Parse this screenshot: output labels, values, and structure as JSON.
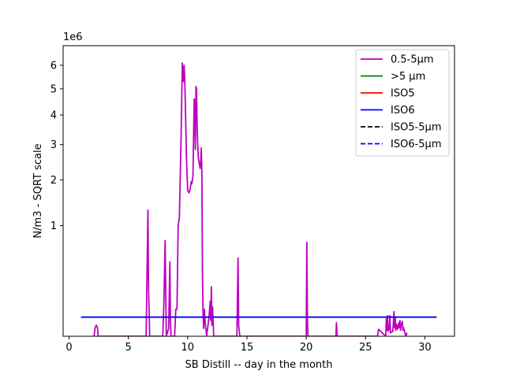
{
  "chart_data": {
    "type": "line",
    "title": "",
    "xlabel": "SB Distill -- day in the month",
    "ylabel": "N/m3 - SQRT scale",
    "y_scale": "sqrt",
    "y_offset_text": "1e6",
    "xlim": [
      -0.5,
      32.5
    ],
    "ylim": [
      0,
      6.9
    ],
    "xticks": [
      0,
      5,
      10,
      15,
      20,
      25,
      30
    ],
    "xtick_labels": [
      "0",
      "5",
      "10",
      "15",
      "20",
      "25",
      "30"
    ],
    "yticks": [
      1,
      2,
      3,
      4,
      5,
      6
    ],
    "ytick_labels": [
      "1",
      "2",
      "3",
      "4",
      "5",
      "6"
    ],
    "legend_position": "upper right",
    "series": [
      {
        "name": "0.5-5µm",
        "color": "#bf00bf",
        "style": "solid",
        "x": [
          2.1,
          2.2,
          2.3,
          2.4,
          2.45,
          6.5,
          6.6,
          6.65,
          6.7,
          6.8,
          7.9,
          8.0,
          8.1,
          8.2,
          8.4,
          8.5,
          8.55,
          8.6,
          8.9,
          9.0,
          9.1,
          9.2,
          9.3,
          9.45,
          9.55,
          9.65,
          9.7,
          9.75,
          9.8,
          9.85,
          9.9,
          10.0,
          10.1,
          10.2,
          10.3,
          10.35,
          10.45,
          10.55,
          10.6,
          10.65,
          10.7,
          10.75,
          10.8,
          10.85,
          10.9,
          10.95,
          11.0,
          11.05,
          11.1,
          11.15,
          11.2,
          11.25,
          11.3,
          11.35,
          11.4,
          11.5,
          11.6,
          11.8,
          11.9,
          11.95,
          12.0,
          12.05,
          12.1,
          12.2,
          14.15,
          14.25,
          14.3,
          14.4,
          20.0,
          20.05,
          20.1,
          20.15,
          22.5,
          22.55,
          22.6,
          26.0,
          26.1,
          26.7,
          26.75,
          26.8,
          26.85,
          26.9,
          27.0,
          27.05,
          27.1,
          27.3,
          27.4,
          27.45,
          27.5,
          27.55,
          27.6,
          27.7,
          27.8,
          27.85,
          27.9,
          27.95,
          28.0,
          28.1,
          28.15,
          28.2,
          28.4,
          28.5
        ],
        "values": [
          0,
          0.006,
          0.01,
          0.006,
          0,
          0,
          0.6,
          1.3,
          0.2,
          0,
          0,
          0.1,
          0.75,
          0,
          0.005,
          0.45,
          0.02,
          0,
          0,
          0.06,
          0.06,
          1.0,
          1.15,
          3.3,
          6.1,
          5.3,
          6.0,
          5.5,
          4.5,
          3.5,
          2.6,
          1.75,
          1.68,
          1.75,
          1.95,
          1.9,
          2.1,
          4.6,
          4.0,
          2.85,
          5.1,
          5.0,
          3.6,
          3.0,
          2.6,
          2.5,
          2.4,
          2.3,
          2.5,
          2.9,
          2.2,
          0.3,
          0.04,
          0.005,
          0.06,
          0.01,
          0,
          0.03,
          0.1,
          0.02,
          0.2,
          0.01,
          0.07,
          0,
          0,
          0.5,
          0.01,
          0,
          0,
          0.72,
          0.02,
          0,
          0,
          0.015,
          0,
          0,
          0.004,
          0,
          0.025,
          0.003,
          0.035,
          0.002,
          0.005,
          0.035,
          0.001,
          0.002,
          0.05,
          0.006,
          0.03,
          0.003,
          0.012,
          0.004,
          0.015,
          0.006,
          0.02,
          0.003,
          0.01,
          0.018,
          0.003,
          0.006,
          0,
          0.001
        ]
      },
      {
        "name": ">5 µm",
        "color": "#008000",
        "style": "solid",
        "x": [],
        "values": []
      },
      {
        "name": "ISO5",
        "color": "#ff0000",
        "style": "solid",
        "x": [],
        "values": []
      },
      {
        "name": "ISO6",
        "color": "#0000ff",
        "style": "solid",
        "x": [
          1,
          31
        ],
        "values": [
          0.03,
          0.03
        ]
      },
      {
        "name": "ISO5-5µm",
        "color": "#000000",
        "style": "dashed",
        "x": [],
        "values": []
      },
      {
        "name": "ISO6-5µm",
        "color": "#0000ff",
        "style": "dashed",
        "x": [],
        "values": []
      }
    ]
  }
}
